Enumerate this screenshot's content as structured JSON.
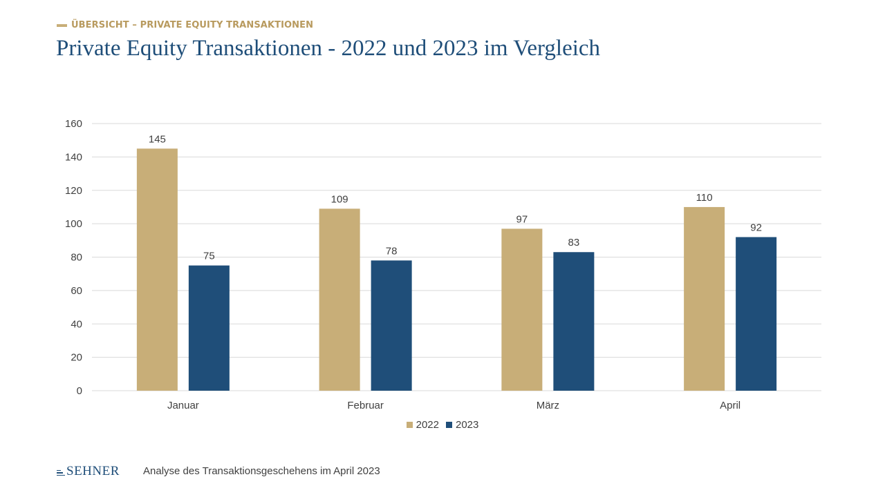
{
  "header": {
    "kicker": "ÜBERSICHT – PRIVATE EQUITY TRANSAKTIONEN",
    "title": "Private Equity Transaktionen - 2022 und 2023 im Vergleich"
  },
  "footer": {
    "logo": "SEHNER",
    "note": "Analyse des Transaktionsgeschehens im April 2023"
  },
  "colors": {
    "2022": "#C8AE78",
    "2023": "#1F4E79",
    "accent": "#B89A5E",
    "title": "#1F4E79",
    "grid": "#D9D9D9"
  },
  "chart_data": {
    "type": "bar",
    "categories": [
      "Januar",
      "Februar",
      "März",
      "April"
    ],
    "series": [
      {
        "name": "2022",
        "values": [
          145,
          109,
          97,
          110
        ]
      },
      {
        "name": "2023",
        "values": [
          75,
          78,
          83,
          92
        ]
      }
    ],
    "ylim": [
      0,
      160
    ],
    "yticks": [
      0,
      20,
      40,
      60,
      80,
      100,
      120,
      140,
      160
    ],
    "grid": true,
    "legend": "bottom-center",
    "data_labels": true
  }
}
